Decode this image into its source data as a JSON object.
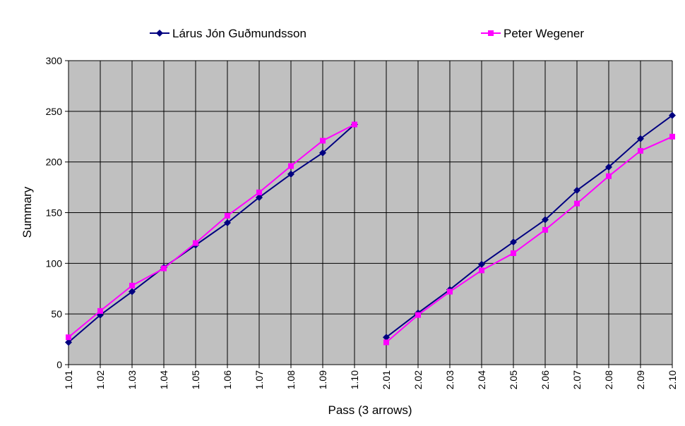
{
  "chart_data": {
    "type": "line",
    "title": "",
    "xlabel": "Pass (3 arrows)",
    "ylabel": "Summary",
    "ylim": [
      0,
      300
    ],
    "yticks": [
      "0",
      "50",
      "100",
      "150",
      "200",
      "250",
      "300"
    ],
    "grid": true,
    "legend_position": "top",
    "plot_background": "#C0C0C0",
    "categories": [
      "1.01",
      "1.02",
      "1.03",
      "1.04",
      "1.05",
      "1.06",
      "1.07",
      "1.08",
      "1.09",
      "1.10",
      "2.01",
      "2.02",
      "2.03",
      "2.04",
      "2.05",
      "2.06",
      "2.07",
      "2.08",
      "2.09",
      "2.10"
    ],
    "series": [
      {
        "name": "Lárus Jón Guðmundsson",
        "color": "#000080",
        "marker": "diamond",
        "segments": [
          [
            22,
            49,
            72,
            96,
            118,
            140,
            165,
            188,
            209,
            237
          ],
          [
            27,
            51,
            74,
            99,
            121,
            143,
            172,
            195,
            223,
            246
          ]
        ]
      },
      {
        "name": "Peter Wegener",
        "color": "#FF00FF",
        "marker": "square",
        "segments": [
          [
            27,
            53,
            78,
            95,
            120,
            147,
            170,
            196,
            221,
            237
          ],
          [
            22,
            49,
            72,
            93,
            110,
            133,
            159,
            186,
            211,
            225
          ]
        ]
      }
    ]
  }
}
